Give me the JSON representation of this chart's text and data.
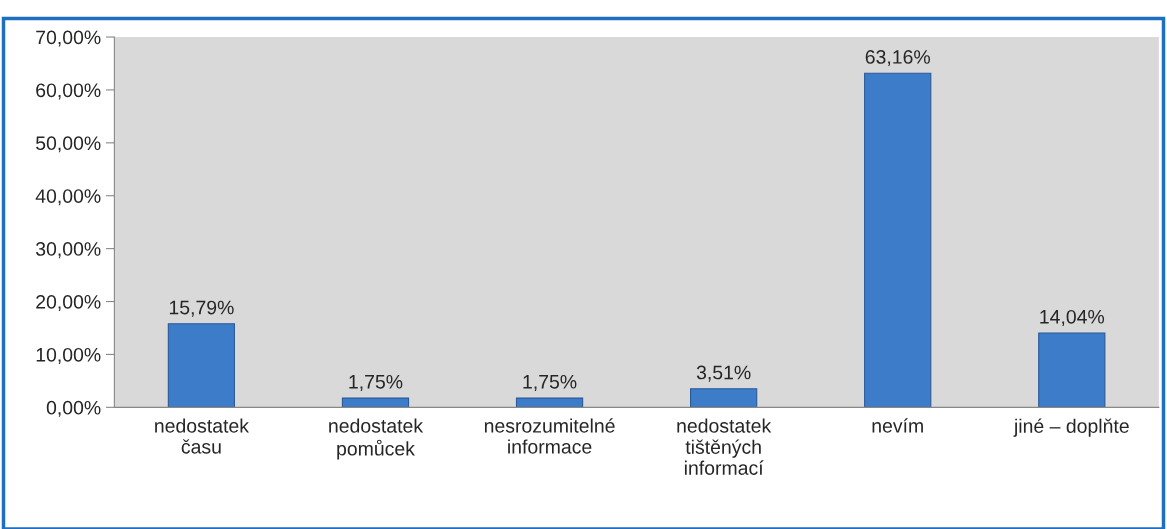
{
  "chart_data": {
    "type": "bar",
    "categories": [
      "nedostatek\nčasu",
      "nedostatek\npomůcek",
      "nesrozumitelné\ninformace",
      "nedostatek\ntištěných\ninformací",
      "nevím",
      "jiné – doplňte"
    ],
    "values": [
      15.79,
      1.75,
      1.75,
      3.51,
      63.16,
      14.04
    ],
    "value_labels": [
      "15,79%",
      "1,75%",
      "1,75%",
      "3,51%",
      "63,16%",
      "14,04%"
    ],
    "color": "#3d7cc9",
    "ylim": [
      0,
      70
    ],
    "yticks": [
      {
        "value": 0,
        "label": "0,00%"
      },
      {
        "value": 10,
        "label": "10,00%"
      },
      {
        "value": 20,
        "label": "20,00%"
      },
      {
        "value": 30,
        "label": "30,00%"
      },
      {
        "value": 40,
        "label": "40,00%"
      },
      {
        "value": 50,
        "label": "50,00%"
      },
      {
        "value": 60,
        "label": "60,00%"
      },
      {
        "value": 70,
        "label": "70,00%"
      }
    ],
    "grid": false
  }
}
